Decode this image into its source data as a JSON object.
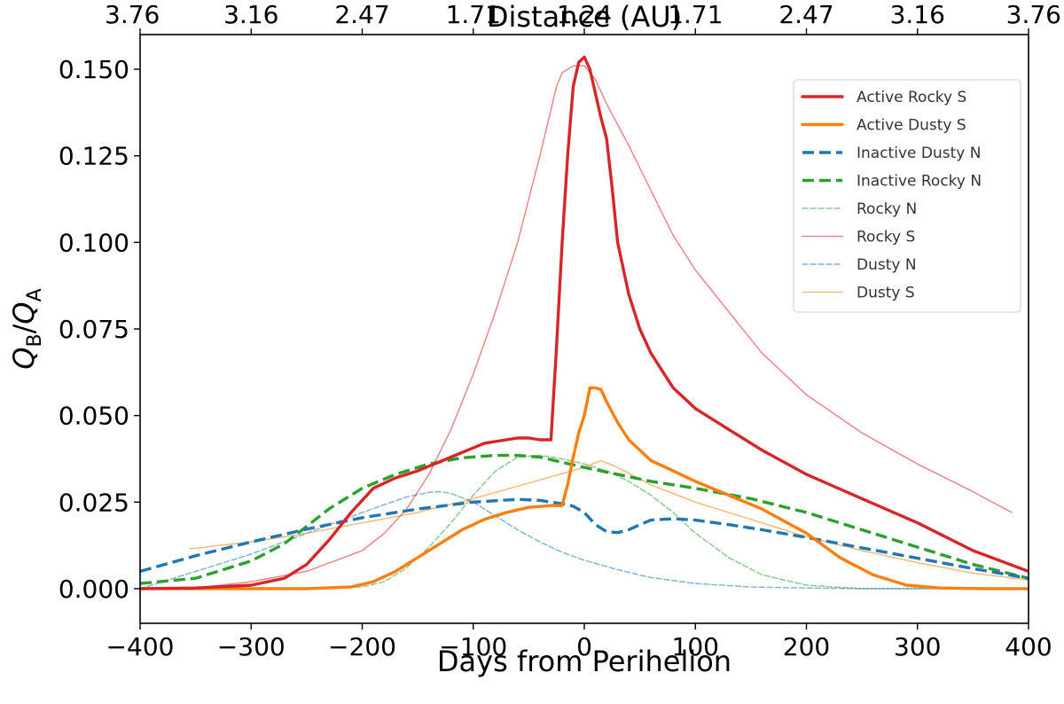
{
  "chart_data": {
    "type": "line",
    "title": "",
    "xlabel": "Days from Perihelion",
    "ylabel_main": "Q",
    "ylabel_sub_b": "B",
    "ylabel_slash": "/",
    "ylabel_sub_a": "A",
    "top_xlabel": "Distance (AU)",
    "xlim": [
      -400,
      400
    ],
    "ylim": [
      -0.01,
      0.16
    ],
    "x_ticks": [
      -400,
      -300,
      -200,
      -100,
      0,
      100,
      200,
      300,
      400
    ],
    "x_tick_labels": [
      "−400",
      "−300",
      "−200",
      "−100",
      "0",
      "100",
      "200",
      "300",
      "400"
    ],
    "y_ticks": [
      0.0,
      0.025,
      0.05,
      0.075,
      0.1,
      0.125,
      0.15
    ],
    "y_tick_labels": [
      "0.000",
      "0.025",
      "0.050",
      "0.075",
      "0.100",
      "0.125",
      "0.150"
    ],
    "top_ticks": [
      -400,
      -300,
      -200,
      -100,
      0,
      100,
      200,
      300,
      400
    ],
    "top_tick_labels": [
      "3.76",
      "3.16",
      "2.47",
      "1.71",
      "1.24",
      "1.71",
      "2.47",
      "3.16",
      "3.76"
    ],
    "legend_position": "top-right",
    "series": [
      {
        "name": "Active Rocky S",
        "color": "#d62728",
        "style": "solid",
        "weight": "thick",
        "x": [
          -400,
          -350,
          -300,
          -270,
          -250,
          -230,
          -210,
          -190,
          -170,
          -150,
          -120,
          -90,
          -60,
          -50,
          -40,
          -30,
          -25,
          -20,
          -15,
          -10,
          -5,
          0,
          5,
          10,
          15,
          20,
          25,
          30,
          40,
          50,
          60,
          80,
          100,
          130,
          160,
          200,
          250,
          300,
          350,
          400
        ],
        "y": [
          0.0,
          0.0002,
          0.001,
          0.003,
          0.007,
          0.014,
          0.022,
          0.029,
          0.032,
          0.034,
          0.038,
          0.042,
          0.0435,
          0.0435,
          0.043,
          0.043,
          0.07,
          0.1,
          0.125,
          0.145,
          0.152,
          0.1535,
          0.15,
          0.143,
          0.136,
          0.13,
          0.116,
          0.1,
          0.085,
          0.075,
          0.068,
          0.058,
          0.052,
          0.046,
          0.04,
          0.033,
          0.026,
          0.019,
          0.011,
          0.005
        ]
      },
      {
        "name": "Active Dusty S",
        "color": "#ff7f0e",
        "style": "solid",
        "weight": "thick",
        "x": [
          -400,
          -300,
          -250,
          -210,
          -190,
          -170,
          -150,
          -130,
          -110,
          -90,
          -70,
          -50,
          -30,
          -20,
          -15,
          -10,
          -5,
          0,
          5,
          10,
          15,
          20,
          30,
          40,
          60,
          80,
          100,
          130,
          160,
          200,
          230,
          260,
          290,
          320,
          360,
          400
        ],
        "y": [
          0.0,
          0.0,
          0.0,
          0.0005,
          0.002,
          0.005,
          0.009,
          0.013,
          0.017,
          0.02,
          0.022,
          0.0235,
          0.024,
          0.024,
          0.03,
          0.038,
          0.045,
          0.05,
          0.058,
          0.058,
          0.0575,
          0.054,
          0.048,
          0.043,
          0.037,
          0.034,
          0.031,
          0.027,
          0.023,
          0.016,
          0.009,
          0.004,
          0.001,
          0.0002,
          0.0,
          0.0
        ]
      },
      {
        "name": "Inactive Dusty N",
        "color": "#1f77b4",
        "style": "dashed",
        "weight": "thick",
        "x": [
          -400,
          -350,
          -300,
          -250,
          -200,
          -150,
          -100,
          -60,
          -40,
          -30,
          -20,
          -10,
          0,
          10,
          20,
          30,
          40,
          50,
          60,
          80,
          100,
          130,
          160,
          200,
          250,
          300,
          350,
          400
        ],
        "y": [
          0.005,
          0.0095,
          0.0135,
          0.0172,
          0.0205,
          0.023,
          0.025,
          0.0258,
          0.0255,
          0.025,
          0.0245,
          0.0238,
          0.022,
          0.0185,
          0.0165,
          0.0162,
          0.017,
          0.0185,
          0.0198,
          0.0202,
          0.0198,
          0.0185,
          0.017,
          0.0148,
          0.0118,
          0.0088,
          0.0058,
          0.003
        ]
      },
      {
        "name": "Inactive Rocky N",
        "color": "#2ca02c",
        "style": "dashed",
        "weight": "thick",
        "x": [
          -400,
          -350,
          -300,
          -270,
          -250,
          -230,
          -200,
          -170,
          -140,
          -110,
          -80,
          -60,
          -40,
          -20,
          0,
          30,
          60,
          100,
          150,
          200,
          250,
          300,
          350,
          400
        ],
        "y": [
          0.0015,
          0.003,
          0.008,
          0.013,
          0.018,
          0.023,
          0.029,
          0.033,
          0.036,
          0.0378,
          0.0385,
          0.0385,
          0.038,
          0.0365,
          0.035,
          0.033,
          0.031,
          0.029,
          0.026,
          0.022,
          0.017,
          0.012,
          0.007,
          0.003
        ]
      },
      {
        "name": "Rocky N",
        "color": "#2ca02c",
        "style": "dashed",
        "weight": "thin",
        "x": [
          -400,
          -250,
          -200,
          -180,
          -160,
          -140,
          -120,
          -100,
          -80,
          -60,
          -40,
          -20,
          0,
          20,
          40,
          60,
          80,
          100,
          130,
          160,
          200,
          250,
          300,
          400
        ],
        "y": [
          0.0,
          0.0,
          0.0005,
          0.002,
          0.006,
          0.012,
          0.019,
          0.027,
          0.034,
          0.038,
          0.0385,
          0.0375,
          0.036,
          0.034,
          0.031,
          0.027,
          0.022,
          0.016,
          0.009,
          0.004,
          0.001,
          0.0,
          0.0,
          0.0
        ]
      },
      {
        "name": "Rocky S",
        "color": "#d62728",
        "style": "solid",
        "weight": "thin",
        "x": [
          -355,
          -300,
          -250,
          -200,
          -180,
          -160,
          -140,
          -120,
          -100,
          -80,
          -60,
          -40,
          -25,
          -20,
          -10,
          0,
          10,
          20,
          40,
          60,
          80,
          100,
          130,
          160,
          200,
          250,
          300,
          350,
          385
        ],
        "y": [
          0.0,
          0.002,
          0.005,
          0.011,
          0.016,
          0.023,
          0.033,
          0.046,
          0.062,
          0.08,
          0.1,
          0.125,
          0.145,
          0.149,
          0.151,
          0.151,
          0.147,
          0.14,
          0.128,
          0.115,
          0.102,
          0.092,
          0.08,
          0.068,
          0.056,
          0.045,
          0.036,
          0.028,
          0.022
        ]
      },
      {
        "name": "Dusty N",
        "color": "#1f77b4",
        "style": "dashed",
        "weight": "thin",
        "x": [
          -400,
          -350,
          -300,
          -250,
          -200,
          -160,
          -140,
          -130,
          -120,
          -100,
          -80,
          -60,
          -40,
          -20,
          0,
          30,
          60,
          100,
          150,
          200,
          250,
          300,
          400
        ],
        "y": [
          0.0,
          0.005,
          0.01,
          0.016,
          0.022,
          0.0265,
          0.0278,
          0.028,
          0.0275,
          0.025,
          0.021,
          0.017,
          0.0135,
          0.0105,
          0.0082,
          0.0055,
          0.0032,
          0.0015,
          0.0005,
          0.0002,
          0.0,
          0.0,
          0.0
        ]
      },
      {
        "name": "Dusty S",
        "color": "#ff7f0e",
        "style": "solid",
        "weight": "thin",
        "x": [
          -355,
          -300,
          -250,
          -200,
          -150,
          -100,
          -50,
          0,
          15,
          30,
          60,
          100,
          150,
          200,
          250,
          300,
          350,
          400
        ],
        "y": [
          0.0115,
          0.0135,
          0.016,
          0.019,
          0.022,
          0.026,
          0.0305,
          0.035,
          0.037,
          0.035,
          0.03,
          0.025,
          0.02,
          0.015,
          0.011,
          0.0075,
          0.0045,
          0.0025
        ]
      }
    ]
  }
}
